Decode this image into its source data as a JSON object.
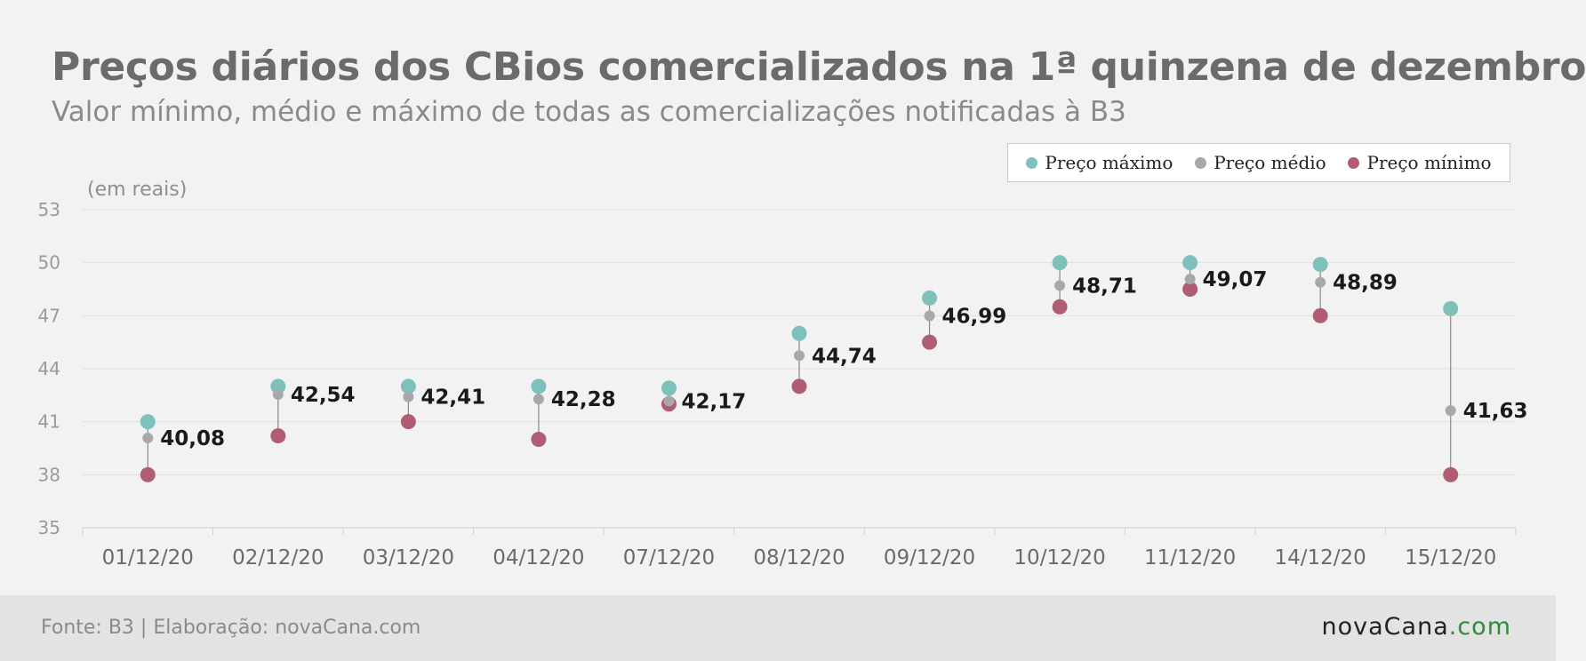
{
  "title": "Preços diários dos CBios comercializados na 1ª quinzena de dezembro",
  "subtitle": "Valor mínimo, médio e máximo de todas as comercializações notificadas à B3",
  "unit_label": "(em reais)",
  "legend": {
    "max": "Preço máximo",
    "avg": "Preço médio",
    "min": "Preço mínimo"
  },
  "colors": {
    "max": "#7dc0bc",
    "avg": "#a8a8a8",
    "min": "#b05c72",
    "connector": "#888888",
    "grid": "#e0e0e0",
    "axis_text": "#9a9a9a",
    "label_text": "#1a1a1a"
  },
  "footer": {
    "source": "Fonte: B3 | Elaboração: novaCana.com",
    "logo_main": "novaCana",
    "logo_domain": ".com"
  },
  "chart_data": {
    "type": "dot-range",
    "ylim": [
      35,
      53
    ],
    "yticks": [
      35,
      38,
      41,
      44,
      47,
      50,
      53
    ],
    "categories": [
      "01/12/20",
      "02/12/20",
      "03/12/20",
      "04/12/20",
      "07/12/20",
      "08/12/20",
      "09/12/20",
      "10/12/20",
      "11/12/20",
      "14/12/20",
      "15/12/20"
    ],
    "series": [
      {
        "name": "Preço máximo",
        "values": [
          41.0,
          43.0,
          43.0,
          43.0,
          42.9,
          46.0,
          48.0,
          50.0,
          50.0,
          49.9,
          47.4
        ]
      },
      {
        "name": "Preço médio",
        "values": [
          40.08,
          42.54,
          42.41,
          42.28,
          42.17,
          44.74,
          46.99,
          48.71,
          49.07,
          48.89,
          41.63
        ]
      },
      {
        "name": "Preço mínimo",
        "values": [
          38.0,
          40.2,
          41.0,
          40.0,
          42.0,
          43.0,
          45.5,
          47.5,
          48.5,
          47.0,
          38.0
        ]
      }
    ],
    "data_labels": [
      "40,08",
      "42,54",
      "42,41",
      "42,28",
      "42,17",
      "44,74",
      "46,99",
      "48,71",
      "49,07",
      "48,89",
      "41,63"
    ],
    "grid": true,
    "legend_position": "top-right"
  }
}
